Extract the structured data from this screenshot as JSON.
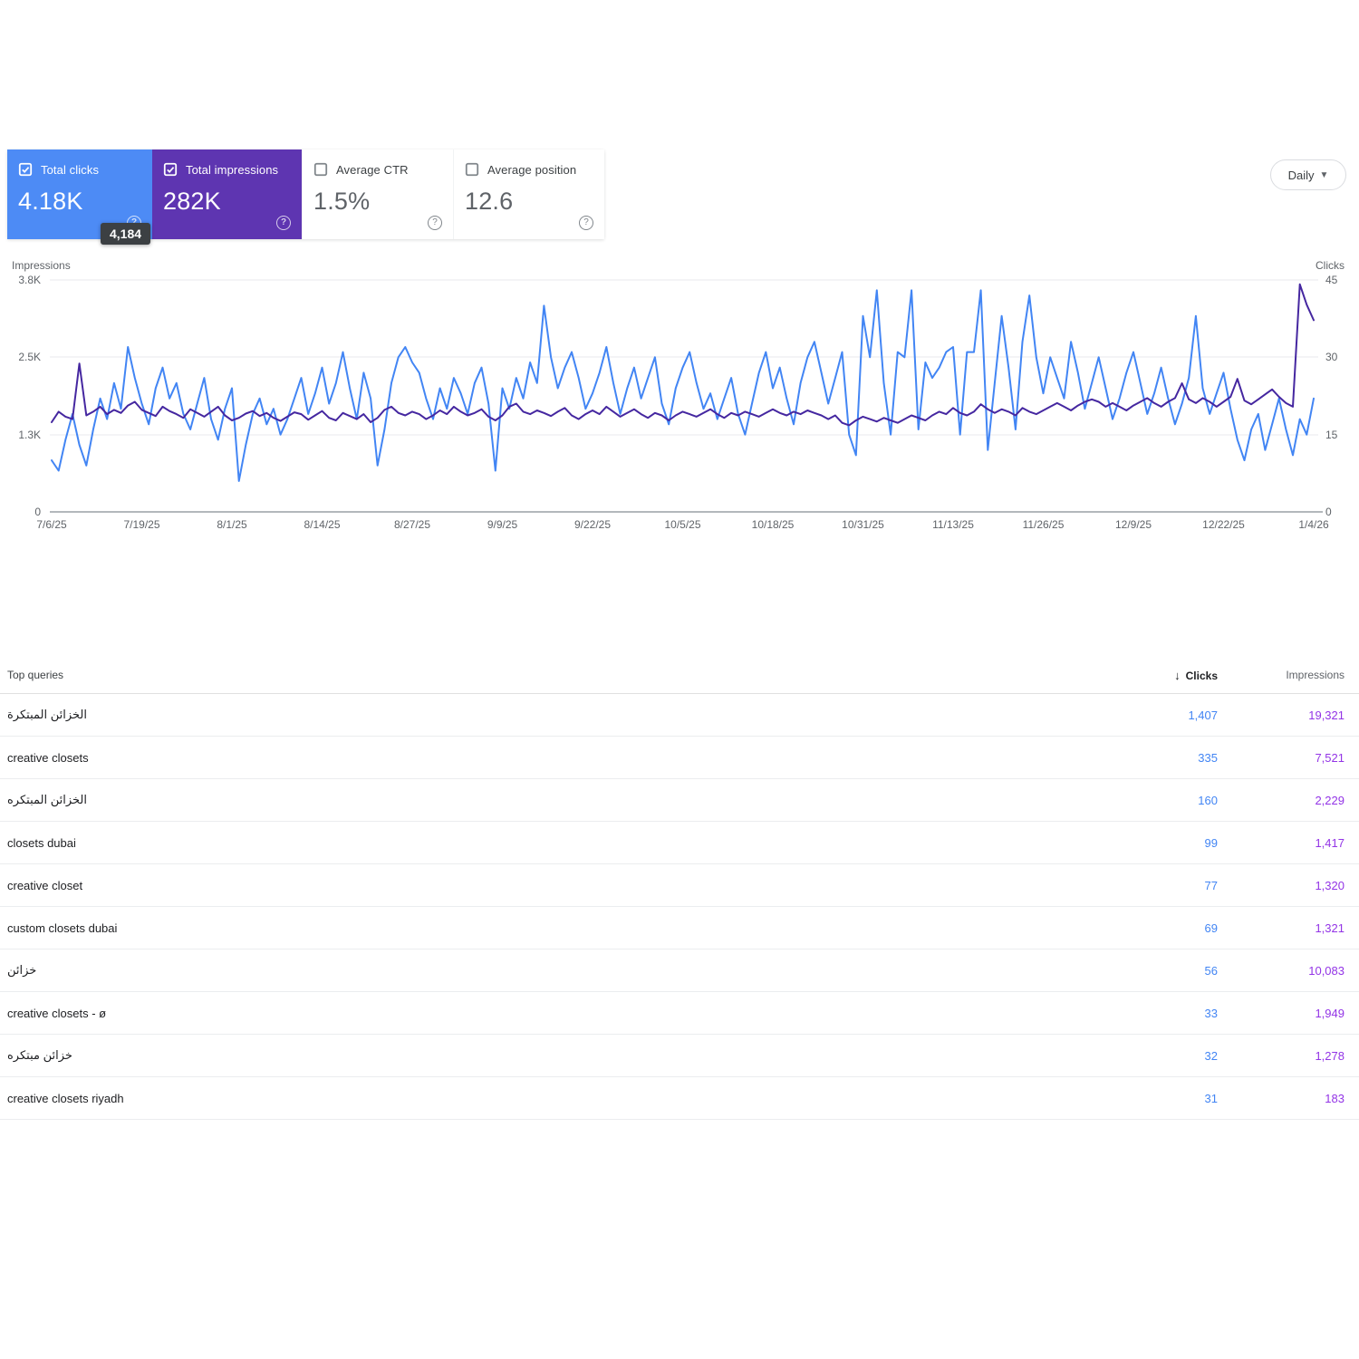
{
  "cards": [
    {
      "label": "Total clicks",
      "value": "4.18K",
      "checked": true,
      "color": "#4d8bf5"
    },
    {
      "label": "Total impressions",
      "value": "282K",
      "checked": true,
      "color": "#5e35b1"
    },
    {
      "label": "Average CTR",
      "value": "1.5%",
      "checked": false
    },
    {
      "label": "Average position",
      "value": "12.6",
      "checked": false
    }
  ],
  "tooltip": {
    "value": "4,184"
  },
  "controls": {
    "granularity": "Daily"
  },
  "chart_data": {
    "type": "line",
    "left_axis": {
      "label": "Impressions",
      "ticks": [
        "3.8K",
        "2.5K",
        "1.3K",
        "0"
      ],
      "min": 0,
      "max": 3750
    },
    "right_axis": {
      "label": "Clicks",
      "ticks": [
        "45",
        "30",
        "15",
        "0"
      ],
      "min": 0,
      "max": 45
    },
    "x_ticks": [
      "7/6/25",
      "7/19/25",
      "8/1/25",
      "8/14/25",
      "8/27/25",
      "9/9/25",
      "9/22/25",
      "10/5/25",
      "10/18/25",
      "10/31/25",
      "11/13/25",
      "11/26/25",
      "12/9/25",
      "12/22/25",
      "1/4/26"
    ],
    "grid": "horizontal",
    "legend": "none",
    "series": [
      {
        "name": "Clicks",
        "axis": "right",
        "color": "#4285f4",
        "values": [
          10,
          8,
          14,
          19,
          13,
          9,
          16,
          22,
          18,
          25,
          20,
          32,
          26,
          21,
          17,
          24,
          28,
          22,
          25,
          19,
          16,
          21,
          26,
          18,
          14,
          20,
          24,
          6,
          13,
          19,
          22,
          17,
          20,
          15,
          18,
          22,
          26,
          19,
          23,
          28,
          21,
          25,
          31,
          24,
          18,
          27,
          22,
          9,
          16,
          25,
          30,
          32,
          29,
          27,
          22,
          18,
          24,
          20,
          26,
          23,
          19,
          25,
          28,
          21,
          8,
          24,
          20,
          26,
          22,
          29,
          25,
          40,
          30,
          24,
          28,
          31,
          26,
          20,
          23,
          27,
          32,
          25,
          19,
          24,
          28,
          22,
          26,
          30,
          21,
          17,
          24,
          28,
          31,
          25,
          20,
          23,
          18,
          22,
          26,
          19,
          15,
          21,
          27,
          31,
          24,
          28,
          22,
          17,
          25,
          30,
          33,
          27,
          21,
          26,
          31,
          15,
          11,
          38,
          30,
          43,
          25,
          15,
          31,
          30,
          43,
          16,
          29,
          26,
          28,
          31,
          32,
          15,
          31,
          31,
          43,
          12,
          25,
          38,
          28,
          16,
          33,
          42,
          30,
          23,
          30,
          26,
          22,
          33,
          27,
          20,
          25,
          30,
          24,
          18,
          22,
          27,
          31,
          25,
          19,
          23,
          28,
          22,
          17,
          21,
          26,
          38,
          24,
          19,
          23,
          27,
          20,
          14,
          10,
          16,
          19,
          12,
          17,
          22,
          16,
          11,
          18,
          15,
          22
        ]
      },
      {
        "name": "Impressions",
        "axis": "left",
        "color": "#4527a0",
        "values": [
          1450,
          1620,
          1540,
          1500,
          2400,
          1560,
          1620,
          1700,
          1580,
          1650,
          1600,
          1720,
          1780,
          1650,
          1600,
          1550,
          1700,
          1630,
          1580,
          1520,
          1660,
          1600,
          1540,
          1620,
          1700,
          1560,
          1480,
          1520,
          1590,
          1630,
          1550,
          1600,
          1520,
          1470,
          1540,
          1610,
          1580,
          1490,
          1560,
          1630,
          1520,
          1480,
          1600,
          1550,
          1500,
          1580,
          1450,
          1520,
          1650,
          1700,
          1600,
          1560,
          1620,
          1580,
          1500,
          1560,
          1640,
          1580,
          1700,
          1620,
          1560,
          1600,
          1660,
          1540,
          1480,
          1560,
          1700,
          1750,
          1620,
          1580,
          1640,
          1600,
          1550,
          1620,
          1680,
          1560,
          1500,
          1580,
          1640,
          1580,
          1700,
          1620,
          1540,
          1600,
          1660,
          1580,
          1520,
          1600,
          1560,
          1480,
          1560,
          1620,
          1580,
          1540,
          1600,
          1660,
          1580,
          1520,
          1600,
          1560,
          1620,
          1580,
          1540,
          1600,
          1660,
          1600,
          1560,
          1620,
          1580,
          1640,
          1600,
          1560,
          1500,
          1560,
          1440,
          1400,
          1480,
          1540,
          1500,
          1460,
          1520,
          1480,
          1440,
          1500,
          1560,
          1520,
          1480,
          1560,
          1620,
          1580,
          1680,
          1600,
          1560,
          1620,
          1740,
          1660,
          1600,
          1660,
          1620,
          1560,
          1680,
          1620,
          1580,
          1640,
          1700,
          1760,
          1700,
          1640,
          1720,
          1780,
          1820,
          1780,
          1700,
          1760,
          1700,
          1640,
          1720,
          1780,
          1840,
          1760,
          1700,
          1780,
          1840,
          2080,
          1820,
          1760,
          1840,
          1780,
          1700,
          1780,
          1860,
          2150,
          1800,
          1740,
          1820,
          1900,
          1980,
          1860,
          1760,
          1700,
          3680,
          3350,
          3100
        ]
      }
    ]
  },
  "table": {
    "title": "Top queries",
    "sort": {
      "column": "Clicks",
      "direction": "desc",
      "icon": "↓"
    },
    "columns": {
      "clicks": "Clicks",
      "impressions": "Impressions"
    },
    "value_colors": {
      "clicks": "#4285f4",
      "impressions": "#9334e6"
    },
    "rows": [
      {
        "query": "الخزائن المبتكرة",
        "clicks": "1,407",
        "impressions": "19,321"
      },
      {
        "query": "creative closets",
        "clicks": "335",
        "impressions": "7,521"
      },
      {
        "query": "الخزائن المبتكره",
        "clicks": "160",
        "impressions": "2,229"
      },
      {
        "query": "closets dubai",
        "clicks": "99",
        "impressions": "1,417"
      },
      {
        "query": "creative closet",
        "clicks": "77",
        "impressions": "1,320"
      },
      {
        "query": "custom closets dubai",
        "clicks": "69",
        "impressions": "1,321"
      },
      {
        "query": "خزائن",
        "clicks": "56",
        "impressions": "10,083"
      },
      {
        "query": "creative closets - ø",
        "clicks": "33",
        "impressions": "1,949"
      },
      {
        "query": "خزائن مبتكره",
        "clicks": "32",
        "impressions": "1,278"
      },
      {
        "query": "creative closets riyadh",
        "clicks": "31",
        "impressions": "183"
      }
    ]
  }
}
